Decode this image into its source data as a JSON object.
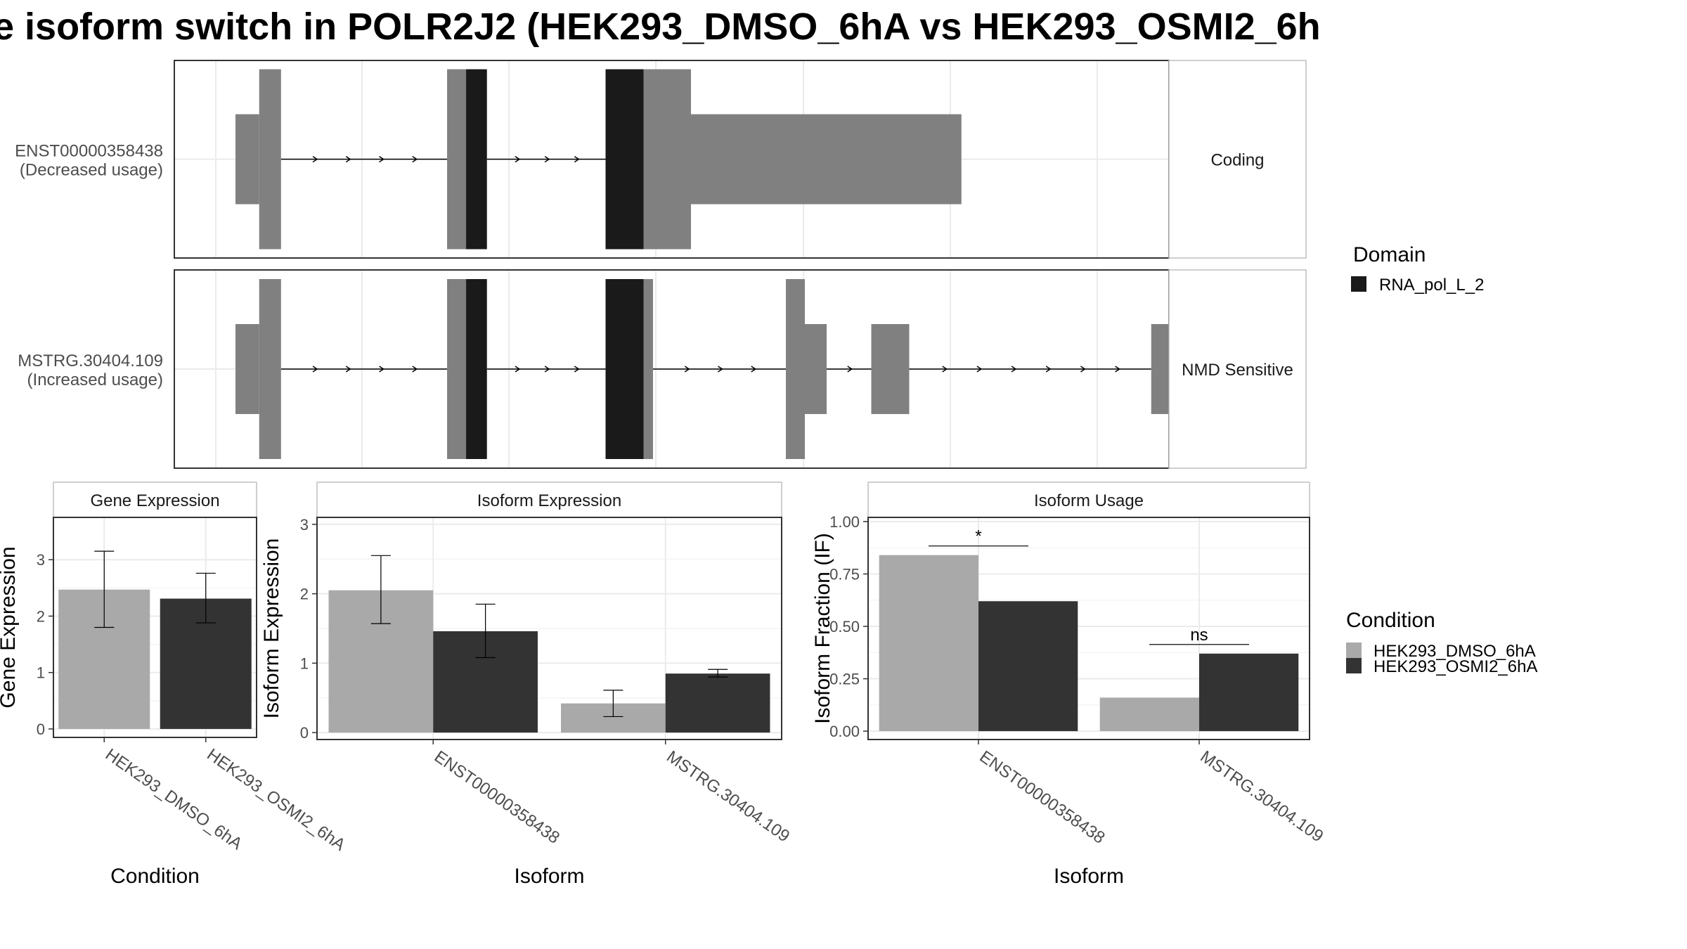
{
  "title": "e isoform switch in POLR2J2 (HEK293_DMSO_6hA vs HEK293_OSMI2_6h",
  "colors": {
    "utr": "#808080",
    "domain": "#1a1a1a",
    "cond1": "#a9a9a9",
    "cond2": "#333333",
    "grid": "#ebebeb",
    "panel_border": "#333333",
    "strip_border": "#bfbfbf"
  },
  "legend_domain": {
    "title": "Domain",
    "items": [
      {
        "label": "RNA_pol_L_2",
        "color": "#1a1a1a"
      }
    ]
  },
  "legend_condition": {
    "title": "Condition",
    "items": [
      {
        "label": "HEK293_DMSO_6hA",
        "color": "#a9a9a9"
      },
      {
        "label": "HEK293_OSMI2_6hA",
        "color": "#333333"
      }
    ]
  },
  "chart_data": [
    {
      "type": "gene-structure",
      "x_range": [
        0,
        1000
      ],
      "transcripts": [
        {
          "name": "ENST00000358438",
          "usage_label": "(Decreased usage)",
          "strip": "Coding",
          "exons": [
            {
              "segments": [
                {
                  "start": 20,
                  "end": 45,
                  "kind": "utr"
                },
                {
                  "start": 45,
                  "end": 68,
                  "kind": "cds"
                }
              ]
            },
            {
              "segments": [
                {
                  "start": 243,
                  "end": 263,
                  "kind": "cds"
                },
                {
                  "start": 263,
                  "end": 285,
                  "kind": "domain"
                }
              ]
            },
            {
              "segments": [
                {
                  "start": 410,
                  "end": 450,
                  "kind": "domain"
                },
                {
                  "start": 450,
                  "end": 500,
                  "kind": "cds"
                },
                {
                  "start": 500,
                  "end": 785,
                  "kind": "utr"
                }
              ]
            }
          ]
        },
        {
          "name": "MSTRG.30404.109",
          "usage_label": "(Increased usage)",
          "strip": "NMD Sensitive",
          "exons": [
            {
              "segments": [
                {
                  "start": 20,
                  "end": 45,
                  "kind": "utr"
                },
                {
                  "start": 45,
                  "end": 68,
                  "kind": "cds"
                }
              ]
            },
            {
              "segments": [
                {
                  "start": 243,
                  "end": 263,
                  "kind": "cds"
                },
                {
                  "start": 263,
                  "end": 285,
                  "kind": "domain"
                }
              ]
            },
            {
              "segments": [
                {
                  "start": 410,
                  "end": 450,
                  "kind": "domain"
                },
                {
                  "start": 450,
                  "end": 460,
                  "kind": "cds"
                }
              ]
            },
            {
              "segments": [
                {
                  "start": 600,
                  "end": 620,
                  "kind": "cds"
                },
                {
                  "start": 620,
                  "end": 643,
                  "kind": "utr"
                }
              ]
            },
            {
              "segments": [
                {
                  "start": 690,
                  "end": 730,
                  "kind": "utr"
                }
              ]
            },
            {
              "segments": [
                {
                  "start": 985,
                  "end": 1018,
                  "kind": "utr"
                }
              ]
            }
          ]
        }
      ]
    },
    {
      "type": "bar",
      "panel_title": "Gene Expression",
      "xlabel": "Condition",
      "ylabel": "Gene Expression",
      "categories": [
        "HEK293_DMSO_6hA",
        "HEK293_OSMI2_6hA"
      ],
      "values": [
        2.47,
        2.31
      ],
      "errors": [
        [
          1.8,
          3.15
        ],
        [
          1.88,
          2.76
        ]
      ],
      "ylim": [
        -0.15,
        3.75
      ],
      "yticks": [
        "0",
        "1",
        "2",
        "3"
      ]
    },
    {
      "type": "bar",
      "panel_title": "Isoform Expression",
      "xlabel": "Isoform",
      "ylabel": "Isoform Expression",
      "categories": [
        "ENST00000358438",
        "MSTRG.30404.109"
      ],
      "series": [
        {
          "name": "HEK293_DMSO_6hA",
          "values": [
            2.05,
            0.42
          ],
          "errors": [
            [
              1.57,
              2.55
            ],
            [
              0.23,
              0.61
            ]
          ]
        },
        {
          "name": "HEK293_OSMI2_6hA",
          "values": [
            1.46,
            0.85
          ],
          "errors": [
            [
              1.08,
              1.85
            ],
            [
              0.8,
              0.91
            ]
          ]
        }
      ],
      "ylim": [
        -0.1,
        3.1
      ],
      "yticks": [
        "0",
        "1",
        "2",
        "3"
      ]
    },
    {
      "type": "bar",
      "panel_title": "Isoform Usage",
      "xlabel": "Isoform",
      "ylabel": "Isoform Fraction (IF)",
      "categories": [
        "ENST00000358438",
        "MSTRG.30404.109"
      ],
      "series": [
        {
          "name": "HEK293_DMSO_6hA",
          "values": [
            0.84,
            0.16
          ]
        },
        {
          "name": "HEK293_OSMI2_6hA",
          "values": [
            0.62,
            0.37
          ]
        }
      ],
      "significance": [
        "*",
        "ns"
      ],
      "ylim": [
        -0.04,
        1.02
      ],
      "yticks": [
        "0.00",
        "0.25",
        "0.50",
        "0.75",
        "1.00"
      ]
    }
  ]
}
